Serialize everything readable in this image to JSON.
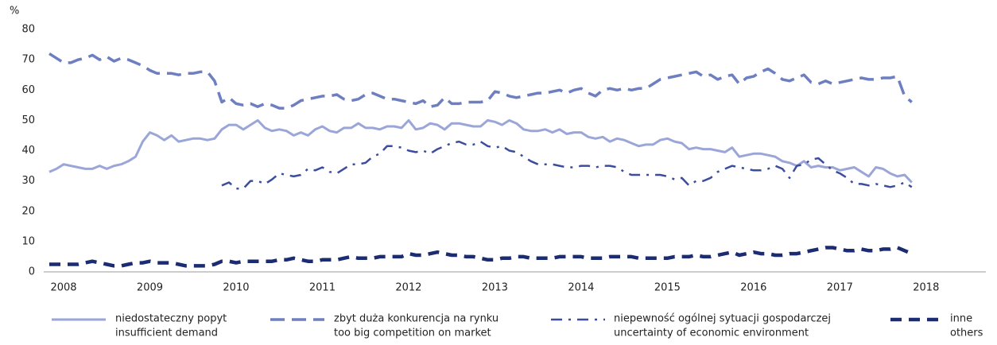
{
  "chart_data": {
    "type": "line",
    "y_label": "%",
    "categories": [
      "2008",
      null,
      null,
      null,
      null,
      null,
      null,
      null,
      null,
      null,
      null,
      null,
      "2009",
      null,
      null,
      null,
      null,
      null,
      null,
      null,
      null,
      null,
      null,
      null,
      "2010",
      null,
      null,
      null,
      null,
      null,
      null,
      null,
      null,
      null,
      null,
      null,
      "2011",
      null,
      null,
      null,
      null,
      null,
      null,
      null,
      null,
      null,
      null,
      null,
      "2012",
      null,
      null,
      null,
      null,
      null,
      null,
      null,
      null,
      null,
      null,
      null,
      "2013",
      null,
      null,
      null,
      null,
      null,
      null,
      null,
      null,
      null,
      null,
      null,
      "2014",
      null,
      null,
      null,
      null,
      null,
      null,
      null,
      null,
      null,
      null,
      null,
      "2015",
      null,
      null,
      null,
      null,
      null,
      null,
      null,
      null,
      null,
      null,
      null,
      "2016",
      null,
      null,
      null,
      null,
      null,
      null,
      null,
      null,
      null,
      null,
      null,
      "2017",
      null,
      null,
      null,
      null,
      null,
      null,
      null,
      null,
      null,
      null,
      null,
      "2018"
    ],
    "ylim": [
      0,
      80
    ],
    "yticks": [
      0,
      10,
      20,
      30,
      40,
      50,
      60,
      70,
      80
    ],
    "grid": false,
    "series": [
      {
        "name": [
          "niedostateczny popyt",
          "insufficient demand"
        ],
        "color": "#9ba6d8",
        "dash": "solid",
        "values": [
          33,
          34,
          35.5,
          35,
          34.5,
          34,
          34,
          35,
          34,
          35,
          35.5,
          36.5,
          38,
          43,
          46,
          45,
          43.5,
          45,
          43,
          43.5,
          44,
          44,
          43.5,
          44,
          47,
          48.5,
          48.5,
          47,
          48.5,
          50,
          47.5,
          46.5,
          47,
          46.5,
          45,
          46,
          45,
          47,
          48,
          46.5,
          46,
          47.5,
          47.5,
          49,
          47.5,
          47.5,
          47,
          48,
          48,
          47.5,
          50,
          47,
          47.5,
          49,
          48.5,
          47,
          49,
          49,
          48.5,
          48,
          48,
          50,
          49.5,
          48.5,
          50,
          49,
          47,
          46.5,
          46.5,
          47,
          46,
          47,
          45.5,
          46,
          46,
          44.5,
          44,
          44.5,
          43,
          44,
          43.5,
          42.5,
          41.5,
          42,
          42,
          43.5,
          44,
          43,
          42.5,
          40.5,
          41,
          40.5,
          40.5,
          40,
          39.5,
          41,
          38,
          38.5,
          39,
          39,
          38.5,
          38,
          36.5,
          36,
          35,
          36.5,
          34.5,
          35,
          34.5,
          34.5,
          33.5,
          34,
          34.5,
          33,
          31.5,
          34.5,
          34,
          32.5,
          31.5,
          32,
          29.5
        ]
      },
      {
        "name": [
          "zbyt duża konkurencja na rynku",
          "too big competition on market"
        ],
        "color": "#6d7fc0",
        "dash": "dashed",
        "values": [
          72,
          70.5,
          69,
          69,
          70,
          70.5,
          71.5,
          70,
          71,
          69.5,
          70.5,
          70,
          69,
          68,
          66.5,
          65.5,
          65.5,
          65.5,
          65,
          65.5,
          65.5,
          66,
          66,
          63,
          56,
          57.5,
          55.5,
          55,
          55.5,
          54.5,
          55.5,
          55,
          54,
          54,
          55,
          56.5,
          57,
          57.5,
          58,
          58,
          58.5,
          57,
          56.5,
          57,
          58.5,
          59,
          58,
          57,
          57,
          56.5,
          56,
          55.5,
          56.5,
          54.5,
          55,
          57.5,
          55.5,
          55.5,
          56,
          56,
          56,
          56.5,
          59.5,
          59,
          58,
          57.5,
          58,
          58.5,
          59,
          59,
          59.5,
          60,
          59,
          60,
          60.5,
          59,
          58,
          60,
          60.5,
          60,
          60.5,
          60,
          60.5,
          60.5,
          62,
          63.5,
          64,
          64.5,
          65,
          65.5,
          66,
          64.5,
          65,
          63.5,
          64.5,
          65,
          62,
          64,
          64.5,
          66,
          67,
          65.5,
          63.5,
          63,
          64,
          65,
          62.5,
          62,
          63,
          62,
          62.5,
          63,
          63.5,
          64,
          63.5,
          63.5,
          64,
          64,
          64.5,
          58,
          56
        ]
      },
      {
        "name": [
          "niepewność ogólnej sytuacji gospodarczej",
          "uncertainty of economic environment"
        ],
        "color": "#3b4d9c",
        "dash": "dashdot",
        "values": [
          null,
          null,
          null,
          null,
          null,
          null,
          null,
          null,
          null,
          null,
          null,
          null,
          null,
          null,
          null,
          null,
          null,
          null,
          null,
          null,
          null,
          null,
          null,
          null,
          28.5,
          29.5,
          27.5,
          27.5,
          30,
          30,
          29,
          30.5,
          32.5,
          32,
          31.5,
          32,
          34,
          33.5,
          34.5,
          33,
          32.5,
          34,
          35.5,
          35.5,
          36,
          38,
          39,
          41.5,
          41.5,
          41,
          40,
          39.5,
          40,
          39,
          40.5,
          41.5,
          42.5,
          43,
          42,
          42,
          43,
          41.5,
          41,
          41.5,
          40,
          39.5,
          38,
          36.5,
          35.5,
          35.5,
          35.5,
          35,
          34.5,
          34.5,
          35,
          35,
          34.5,
          35,
          35,
          34.5,
          33,
          32,
          32,
          32,
          32,
          32,
          31.5,
          30.5,
          31,
          28.5,
          30,
          30,
          31,
          33,
          34,
          35,
          34.5,
          34,
          33.5,
          33.5,
          34,
          35,
          34,
          31,
          35,
          35.5,
          37,
          37.5,
          35.5,
          33.5,
          32.5,
          31,
          29,
          29,
          28.5,
          29,
          28.5,
          28,
          28.5,
          29.5,
          28
        ]
      },
      {
        "name": [
          "inne",
          "others"
        ],
        "color": "#1c2c72",
        "dash": "dashed-bold",
        "values": [
          2.5,
          2.5,
          2.5,
          2.5,
          2.5,
          3,
          3.5,
          3,
          2.5,
          2,
          2,
          2.5,
          3,
          3,
          3.5,
          3,
          3,
          3,
          2.5,
          2,
          2,
          2,
          2,
          2.5,
          3.5,
          3.5,
          3,
          3.5,
          3.5,
          3.5,
          3.5,
          3.5,
          4,
          4,
          4.5,
          4,
          3.5,
          3.5,
          4,
          4,
          4,
          4.5,
          5,
          4.5,
          4.5,
          4.5,
          5,
          5,
          5,
          5,
          6,
          5.5,
          5.5,
          6,
          6.5,
          6,
          5.5,
          5.5,
          5,
          5,
          4.5,
          4,
          4,
          4.5,
          4.5,
          5,
          5,
          4.5,
          4.5,
          4.5,
          4.5,
          5,
          5,
          5,
          5,
          4.5,
          4.5,
          4.5,
          5,
          5,
          5,
          5,
          4.5,
          4.5,
          4.5,
          4.5,
          4.5,
          5,
          5,
          5,
          5.5,
          5,
          5,
          5.5,
          6,
          6.5,
          5.5,
          6,
          6.5,
          6,
          6,
          5.5,
          5.5,
          6,
          6,
          6.5,
          7,
          7.5,
          8,
          8,
          7.5,
          7,
          7,
          7.5,
          7,
          7,
          7.5,
          7.5,
          8,
          7,
          6
        ]
      }
    ]
  }
}
